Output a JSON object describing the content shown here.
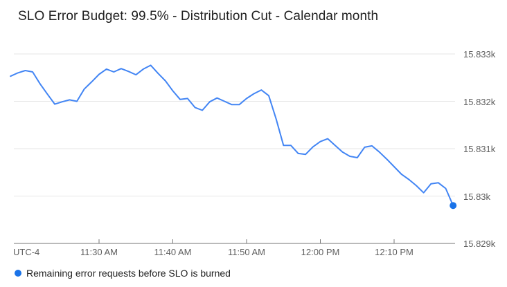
{
  "colors": {
    "background": "#ffffff",
    "line": "#4285f4",
    "marker": "#1a73e8",
    "grid": "#e6e6e6",
    "axis": "#757575",
    "text_primary": "#212121",
    "text_secondary": "#5f5f5f"
  },
  "chart_data": {
    "type": "line",
    "title": "SLO Error Budget: 99.5% - Distribution Cut - Calendar month",
    "xlabel": "",
    "ylabel": "",
    "timezone_label": "UTC-4",
    "grid": "horizontal",
    "legend_position": "bottom-left",
    "ylim": [
      15829,
      15833.5
    ],
    "y_ticks": {
      "labels": [
        "15.833k",
        "15.832k",
        "15.831k",
        "15.83k",
        "15.829k"
      ],
      "values": [
        15833,
        15832,
        15831,
        15830,
        15829
      ]
    },
    "x_ticks": [
      "11:30 AM",
      "11:40 AM",
      "11:50 AM",
      "12:00 PM",
      "12:10 PM"
    ],
    "x": [
      "11:18 AM",
      "11:19 AM",
      "11:20 AM",
      "11:21 AM",
      "11:22 AM",
      "11:23 AM",
      "11:24 AM",
      "11:25 AM",
      "11:26 AM",
      "11:27 AM",
      "11:28 AM",
      "11:29 AM",
      "11:30 AM",
      "11:31 AM",
      "11:32 AM",
      "11:33 AM",
      "11:34 AM",
      "11:35 AM",
      "11:36 AM",
      "11:37 AM",
      "11:38 AM",
      "11:39 AM",
      "11:40 AM",
      "11:41 AM",
      "11:42 AM",
      "11:43 AM",
      "11:44 AM",
      "11:45 AM",
      "11:46 AM",
      "11:47 AM",
      "11:48 AM",
      "11:49 AM",
      "11:50 AM",
      "11:51 AM",
      "11:52 AM",
      "11:53 AM",
      "11:54 AM",
      "11:55 AM",
      "11:56 AM",
      "11:57 AM",
      "11:58 AM",
      "11:59 AM",
      "12:00 PM",
      "12:01 PM",
      "12:02 PM",
      "12:03 PM",
      "12:04 PM",
      "12:05 PM",
      "12:06 PM",
      "12:07 PM",
      "12:08 PM",
      "12:09 PM",
      "12:10 PM",
      "12:11 PM",
      "12:12 PM",
      "12:13 PM",
      "12:14 PM",
      "12:15 PM",
      "12:16 PM",
      "12:17 PM",
      "12:18 PM"
    ],
    "series": [
      {
        "name": "Remaining error requests before SLO is burned",
        "color": "#4285f4",
        "end_marker": true,
        "values": [
          15832.53,
          15832.6,
          15832.65,
          15832.62,
          15832.37,
          15832.15,
          15831.94,
          15831.99,
          15832.03,
          15832.0,
          15832.26,
          15832.41,
          15832.57,
          15832.68,
          15832.62,
          15832.69,
          15832.63,
          15832.56,
          15832.68,
          15832.76,
          15832.59,
          15832.43,
          15832.22,
          15832.04,
          15832.06,
          15831.87,
          15831.81,
          15831.99,
          15832.07,
          15832.0,
          15831.93,
          15831.93,
          15832.06,
          15832.16,
          15832.24,
          15832.12,
          15831.63,
          15831.07,
          15831.07,
          15830.9,
          15830.88,
          15831.04,
          15831.15,
          15831.21,
          15831.07,
          15830.93,
          15830.84,
          15830.81,
          15831.03,
          15831.06,
          15830.93,
          15830.78,
          15830.62,
          15830.46,
          15830.35,
          15830.22,
          15830.07,
          15830.26,
          15830.28,
          15830.16,
          15829.8
        ]
      }
    ]
  }
}
